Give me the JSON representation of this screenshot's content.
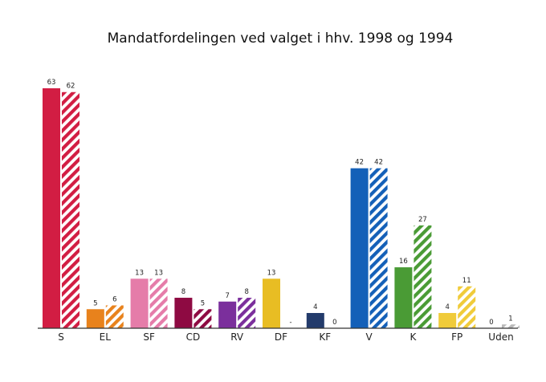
{
  "chart_data": {
    "type": "bar",
    "title": "Mandatfordelingen ved valget i hhv. 1998 og 1994",
    "xlabel": "",
    "ylabel": "",
    "ylim": [
      0,
      63
    ],
    "grid": false,
    "legend": "none",
    "categories": [
      "S",
      "EL",
      "SF",
      "CD",
      "RV",
      "DF",
      "KF",
      "V",
      "K",
      "FP",
      "Uden"
    ],
    "series": [
      {
        "pattern": "solid",
        "values": [
          63,
          5,
          13,
          8,
          7,
          13,
          4,
          42,
          16,
          4,
          0
        ]
      },
      {
        "pattern": "hatched",
        "values": [
          62,
          6,
          13,
          5,
          8,
          null,
          0,
          42,
          27,
          11,
          1
        ]
      }
    ],
    "value_labels": {
      "series_0": [
        "63",
        "5",
        "13",
        "8",
        "7",
        "13",
        "4",
        "42",
        "16",
        "4",
        "0"
      ],
      "series_1": [
        "62",
        "6",
        "13",
        "5",
        "8",
        "-",
        "0",
        "42",
        "27",
        "11",
        "1"
      ]
    },
    "colors": [
      "#d21d43",
      "#e8821c",
      "#e57ca9",
      "#8e0a42",
      "#7b2f9c",
      "#e8bd23",
      "#233b6b",
      "#1460b8",
      "#4a9b35",
      "#f0cb3a",
      "#b9b9b9"
    ]
  }
}
